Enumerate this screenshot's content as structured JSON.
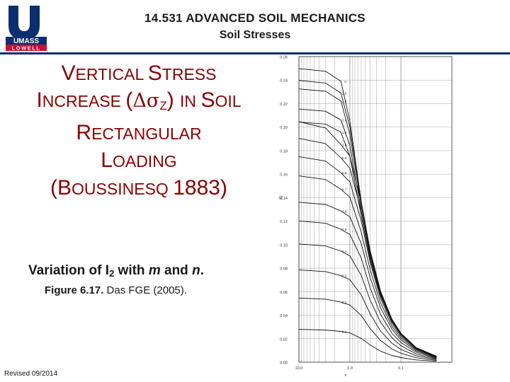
{
  "header": {
    "logo_text_top": "UMASS",
    "logo_text_bottom": "LOWELL",
    "title": "14.531 ADVANCED SOIL MECHANICS",
    "subtitle": "Soil Stresses"
  },
  "slide": {
    "title_l1_a": "V",
    "title_l1_b": "ERTICAL ",
    "title_l1_c": "S",
    "title_l1_d": "TRESS",
    "title_l2_a": "I",
    "title_l2_b": "NCREASE ",
    "title_l2_c": "(",
    "title_l2_delta": "Δσ",
    "title_l2_sub": "Z",
    "title_l2_d": ") ",
    "title_l2_e": "IN ",
    "title_l2_f": "S",
    "title_l2_g": "OIL",
    "title_l3_a": "R",
    "title_l3_b": "ECTANGULAR",
    "title_l4_a": "L",
    "title_l4_b": "OADING",
    "title_l5_a": "(B",
    "title_l5_b": "OUSSINESQ ",
    "title_l5_c": "1883)",
    "caption_a": "Variation of I",
    "caption_sub": "2",
    "caption_b": " with ",
    "caption_m": "m",
    "caption_c": " and ",
    "caption_n": "n",
    "caption_d": ".",
    "figure_ref_bold": "Figure 6.17.",
    "figure_ref_rest": " Das FGE (2005).",
    "revised": "Revised 09/2014"
  },
  "colors": {
    "title_red": "#8b0000",
    "header_rule": "#0a2e6e",
    "curve": "#111111",
    "grid": "#9a9a9a"
  },
  "chart_data": {
    "type": "line",
    "x_scale": "log",
    "xlim": [
      10,
      0.01
    ],
    "ylim": [
      0,
      0.26
    ],
    "ylabel": "I2",
    "xlabel": "n",
    "y_ticks": [
      "0.26",
      "0.24",
      "0.22",
      "0.20",
      "0.18",
      "0.16",
      "0.14",
      "0.12",
      "0.10",
      "0.08",
      "0.06",
      "0.04",
      "0.02",
      "0.00"
    ],
    "x_ticks": [
      "10.0",
      "1.0",
      "0.1"
    ],
    "curve_labels": [
      "∞",
      "2.0",
      "1.8",
      "1.4",
      "1.2",
      "1.0",
      "0.9",
      "0.8",
      "0.7",
      "0.6",
      "0.5",
      "0.4",
      "0.3",
      "0.2",
      "0.1"
    ],
    "series": [
      {
        "name": "∞",
        "values_x": [
          10,
          3,
          1.5,
          1,
          0.6,
          0.4,
          0.25,
          0.15,
          0.1,
          0.05,
          0.02
        ],
        "values_y": [
          0.2498,
          0.2475,
          0.239,
          0.2048,
          0.1367,
          0.0939,
          0.0601,
          0.0366,
          0.0246,
          0.0123,
          0.005
        ]
      },
      {
        "name": "2.0",
        "values_x": [
          10,
          3,
          1.5,
          1,
          0.6,
          0.4,
          0.25,
          0.15,
          0.1,
          0.05,
          0.02
        ],
        "values_y": [
          0.2397,
          0.2375,
          0.229,
          0.2,
          0.1356,
          0.0933,
          0.0598,
          0.0364,
          0.0245,
          0.0123,
          0.005
        ]
      },
      {
        "name": "1.8",
        "values_x": [
          10,
          3,
          1.5,
          1,
          0.6,
          0.4,
          0.25,
          0.15,
          0.1,
          0.05,
          0.02
        ],
        "values_y": [
          0.2325,
          0.2305,
          0.2222,
          0.1937,
          0.1334,
          0.0919,
          0.0591,
          0.0361,
          0.0243,
          0.0122,
          0.0049
        ]
      },
      {
        "name": "1.4",
        "values_x": [
          10,
          3,
          1.5,
          1,
          0.6,
          0.4,
          0.25,
          0.15,
          0.1,
          0.05,
          0.02
        ],
        "values_y": [
          0.2154,
          0.2135,
          0.206,
          0.1843,
          0.1292,
          0.0895,
          0.0579,
          0.0354,
          0.0239,
          0.012,
          0.0048
        ]
      },
      {
        "name": "1.2",
        "values_x": [
          10,
          3,
          1.5,
          1,
          0.6,
          0.4,
          0.25,
          0.15,
          0.1,
          0.05,
          0.02
        ],
        "values_y": [
          0.2044,
          0.2026,
          0.1956,
          0.1751,
          0.1246,
          0.0868,
          0.0563,
          0.0345,
          0.0233,
          0.0117,
          0.0047
        ]
      },
      {
        "name": "1.0",
        "values_x": [
          10,
          3,
          1.5,
          1,
          0.6,
          0.4,
          0.25,
          0.15,
          0.1,
          0.05,
          0.02
        ],
        "values_y": [
          0.2046,
          0.1993,
          0.1851,
          0.1752,
          0.1361,
          0.0947,
          0.0602,
          0.0365,
          0.0245,
          0.0123,
          0.0049
        ]
      },
      {
        "name": "0.9",
        "values_x": [
          10,
          3,
          1.5,
          1,
          0.6,
          0.4,
          0.25,
          0.15,
          0.1,
          0.05,
          0.02
        ],
        "values_y": [
          0.1904,
          0.1859,
          0.1739,
          0.1649,
          0.1286,
          0.0901,
          0.0575,
          0.0349,
          0.0235,
          0.0118,
          0.0047
        ]
      },
      {
        "name": "0.8",
        "values_x": [
          10,
          3,
          1.5,
          1,
          0.6,
          0.4,
          0.25,
          0.15,
          0.1,
          0.05,
          0.02
        ],
        "values_y": [
          0.1749,
          0.1711,
          0.1612,
          0.1533,
          0.1202,
          0.0846,
          0.0542,
          0.0329,
          0.0222,
          0.0111,
          0.0045
        ]
      },
      {
        "name": "0.7",
        "values_x": [
          10,
          3,
          1.5,
          1,
          0.6,
          0.4,
          0.25,
          0.15,
          0.1,
          0.05,
          0.02
        ],
        "values_y": [
          0.1585,
          0.1554,
          0.1471,
          0.1403,
          0.1107,
          0.0784,
          0.0504,
          0.0306,
          0.0207,
          0.0104,
          0.0042
        ]
      },
      {
        "name": "0.6",
        "values_x": [
          10,
          3,
          1.5,
          1,
          0.6,
          0.4,
          0.25,
          0.15,
          0.1,
          0.05,
          0.02
        ],
        "values_y": [
          0.1361,
          0.1342,
          0.1286,
          0.1236,
          0.1008,
          0.0717,
          0.0462,
          0.0281,
          0.019,
          0.0095,
          0.0038
        ]
      },
      {
        "name": "0.5",
        "values_x": [
          10,
          3,
          1.5,
          1,
          0.6,
          0.4,
          0.25,
          0.15,
          0.1,
          0.05,
          0.02
        ],
        "values_y": [
          0.1202,
          0.1182,
          0.1131,
          0.1086,
          0.0886,
          0.063,
          0.0406,
          0.0247,
          0.0167,
          0.0084,
          0.0034
        ]
      },
      {
        "name": "0.4",
        "values_x": [
          10,
          3,
          1.5,
          1,
          0.6,
          0.4,
          0.25,
          0.15,
          0.1,
          0.05,
          0.02
        ],
        "values_y": [
          0.1006,
          0.0989,
          0.0945,
          0.0904,
          0.0738,
          0.0527,
          0.034,
          0.0207,
          0.014,
          0.007,
          0.0028
        ]
      },
      {
        "name": "0.3",
        "values_x": [
          10,
          3,
          1.5,
          1,
          0.6,
          0.4,
          0.25,
          0.15,
          0.1,
          0.05,
          0.02
        ],
        "values_y": [
          0.0785,
          0.0771,
          0.0736,
          0.0701,
          0.0573,
          0.0409,
          0.0265,
          0.0161,
          0.0109,
          0.0055,
          0.0022
        ]
      },
      {
        "name": "0.2",
        "values_x": [
          10,
          3,
          1.5,
          1,
          0.6,
          0.4,
          0.25,
          0.15,
          0.1,
          0.05,
          0.02
        ],
        "values_y": [
          0.0546,
          0.0536,
          0.0511,
          0.0486,
          0.0397,
          0.0285,
          0.0184,
          0.0112,
          0.0076,
          0.0038,
          0.0015
        ]
      },
      {
        "name": "0.1",
        "values_x": [
          10,
          3,
          1.5,
          1,
          0.6,
          0.4,
          0.25,
          0.15,
          0.1,
          0.05,
          0.02
        ],
        "values_y": [
          0.0279,
          0.0274,
          0.0262,
          0.0249,
          0.0203,
          0.0146,
          0.0094,
          0.0057,
          0.0039,
          0.0019,
          0.0008
        ]
      }
    ]
  }
}
